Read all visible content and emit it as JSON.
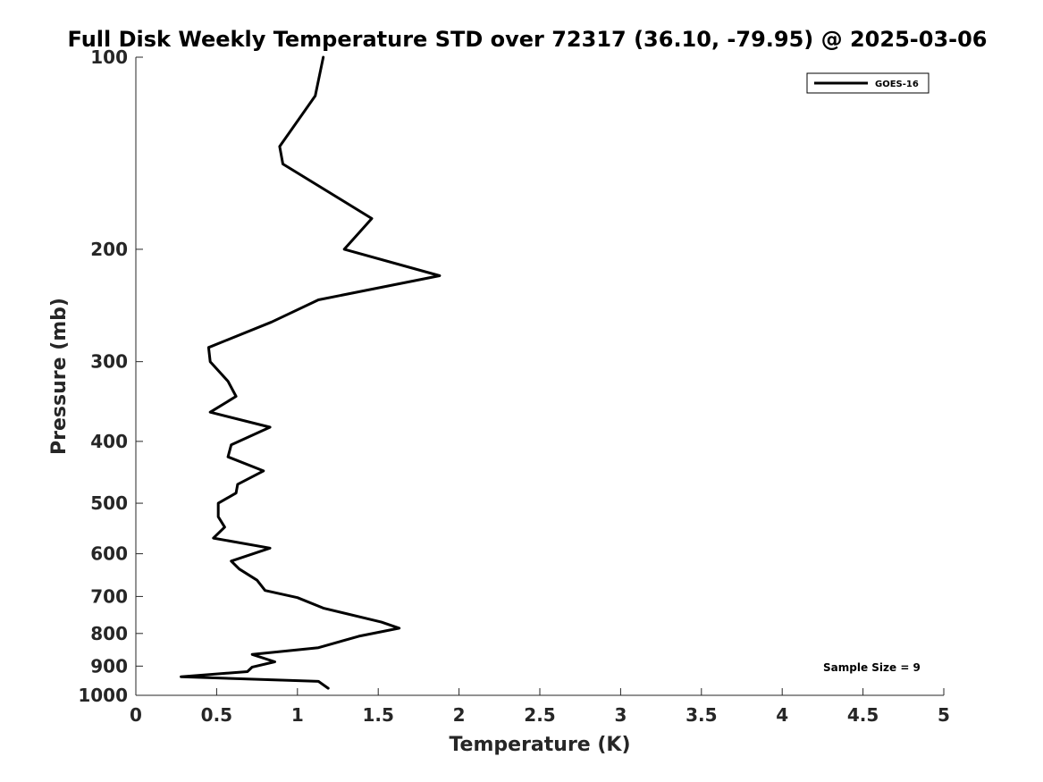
{
  "chart_data": {
    "type": "line",
    "title": "Full Disk Weekly Temperature STD over 72317 (36.10, -79.95) @ 2025-03-06",
    "xlabel": "Temperature (K)",
    "ylabel": "Pressure (mb)",
    "xlim": [
      0,
      5
    ],
    "ylim": [
      1000,
      100
    ],
    "y_scale": "log",
    "y_reversed": true,
    "grid": false,
    "x_ticks": [
      0,
      0.5,
      1,
      1.5,
      2,
      2.5,
      3,
      3.5,
      4,
      4.5,
      5
    ],
    "x_tick_labels": [
      "0",
      "0.5",
      "1",
      "1.5",
      "2",
      "2.5",
      "3",
      "3.5",
      "4",
      "4.5",
      "5"
    ],
    "y_ticks": [
      100,
      200,
      300,
      400,
      500,
      600,
      700,
      800,
      900,
      1000
    ],
    "y_tick_labels": [
      "100",
      "200",
      "300",
      "400",
      "500",
      "600",
      "700",
      "800",
      "900",
      "1000"
    ],
    "legend": {
      "position": "top-right",
      "entries": [
        "GOES-16"
      ]
    },
    "annotation": "Sample Size = 9",
    "series": [
      {
        "name": "GOES-16",
        "color": "#000000",
        "x": [
          1.16,
          1.11,
          0.89,
          0.91,
          1.46,
          1.29,
          1.88,
          1.13,
          0.84,
          0.45,
          0.46,
          0.57,
          0.62,
          0.46,
          0.83,
          0.59,
          0.57,
          0.79,
          0.63,
          0.62,
          0.51,
          0.51,
          0.55,
          0.48,
          0.83,
          0.59,
          0.64,
          0.75,
          0.8,
          1.0,
          1.16,
          1.52,
          1.63,
          1.38,
          1.13,
          0.72,
          0.86,
          0.72,
          0.69,
          0.28,
          1.13,
          1.19
        ],
        "y": [
          100,
          115,
          138,
          147,
          179,
          200,
          220,
          240,
          260,
          285,
          300,
          322,
          340,
          360,
          380,
          405,
          423,
          445,
          467,
          482,
          500,
          525,
          545,
          567,
          588,
          616,
          634,
          660,
          685,
          703,
          730,
          768,
          785,
          808,
          842,
          863,
          886,
          903,
          918,
          935,
          951,
          975
        ]
      }
    ]
  }
}
